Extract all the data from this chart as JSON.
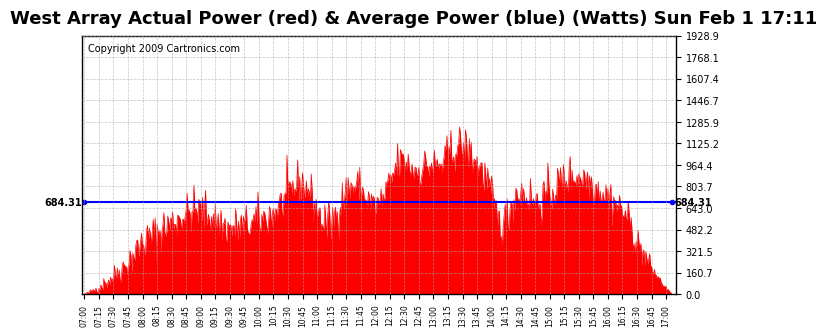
{
  "title": "West Array Actual Power (red) & Average Power (blue) (Watts) Sun Feb 1 17:11",
  "copyright": "Copyright 2009 Cartronics.com",
  "avg_power": 684.31,
  "y_ticks": [
    0.0,
    160.7,
    321.5,
    482.2,
    643.0,
    803.7,
    964.4,
    1125.2,
    1285.9,
    1446.7,
    1607.4,
    1768.1,
    1928.9
  ],
  "ymax": 1928.9,
  "ymin": 0.0,
  "bar_color": "#ff0000",
  "line_color": "#0000ff",
  "bg_color": "#ffffff",
  "grid_color": "#aaaaaa",
  "title_fontsize": 13,
  "copyright_fontsize": 7
}
